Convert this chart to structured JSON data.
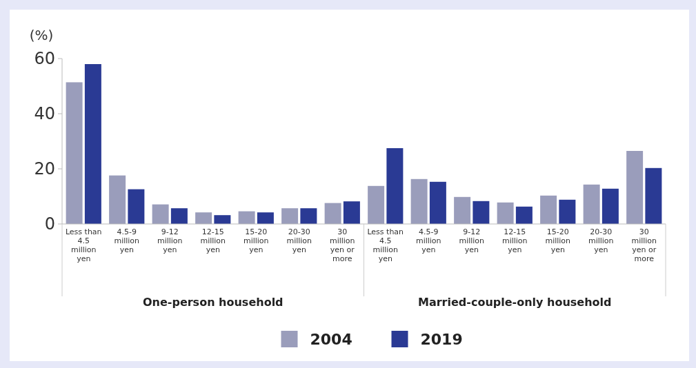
{
  "chart_data": {
    "type": "bar",
    "ylabel": "(%)",
    "categories": [
      "Less than 4.5 million yen",
      "4.5-9 million yen",
      "9-12 million yen",
      "12-15 million yen",
      "15-20 million yen",
      "20-30 million yen",
      "30 million yen or more",
      "Less than 4.5 million yen",
      "4.5-9 million yen",
      "9-12 million yen",
      "12-15 million yen",
      "15-20 million yen",
      "20-30 million yen",
      "30 million yen or more"
    ],
    "series": [
      {
        "name": "2004",
        "color": "#9a9dbb",
        "values": [
          51.4,
          17.6,
          7.1,
          4.2,
          4.6,
          5.7,
          7.6,
          13.8,
          16.3,
          9.8,
          7.8,
          10.3,
          14.3,
          26.5
        ]
      },
      {
        "name": "2019",
        "color": "#2a3a94",
        "values": [
          58.0,
          12.6,
          5.7,
          3.2,
          4.2,
          5.7,
          8.2,
          27.5,
          15.3,
          8.3,
          6.3,
          8.8,
          12.8,
          20.3
        ]
      }
    ],
    "annotations": [
      "One-person household",
      "Married-couple-only household"
    ],
    "ylim": [
      0,
      60
    ],
    "yticks": [
      0,
      20,
      40,
      60
    ],
    "grid": false,
    "legend": "bottom"
  }
}
